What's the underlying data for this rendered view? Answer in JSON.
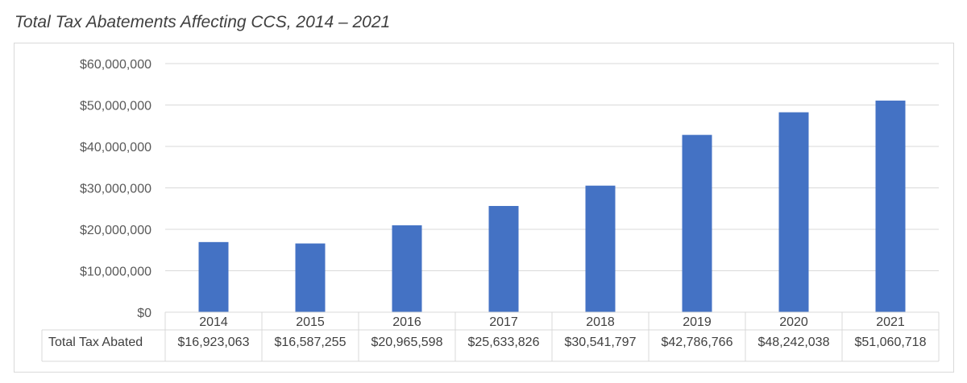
{
  "chart_data": {
    "type": "bar",
    "title": "Total Tax Abatements Affecting CCS, 2014 – 2021",
    "categories": [
      "2014",
      "2015",
      "2016",
      "2017",
      "2018",
      "2019",
      "2020",
      "2021"
    ],
    "series": [
      {
        "name": "Total Tax Abated",
        "values": [
          16923063,
          16587255,
          20965598,
          25633826,
          30541797,
          42786766,
          48242038,
          51060718
        ],
        "labels": [
          "$16,923,063",
          "$16,587,255",
          "$20,965,598",
          "$25,633,826",
          "$30,541,797",
          "$42,786,766",
          "$48,242,038",
          "$51,060,718"
        ]
      }
    ],
    "y_ticks": [
      "$0",
      "$10,000,000",
      "$20,000,000",
      "$30,000,000",
      "$40,000,000",
      "$50,000,000",
      "$60,000,000"
    ],
    "ylim": [
      0,
      60000000
    ],
    "grid": true,
    "bar_color": "#4472c4",
    "grid_color": "#d9d9d9",
    "data_table": true
  }
}
